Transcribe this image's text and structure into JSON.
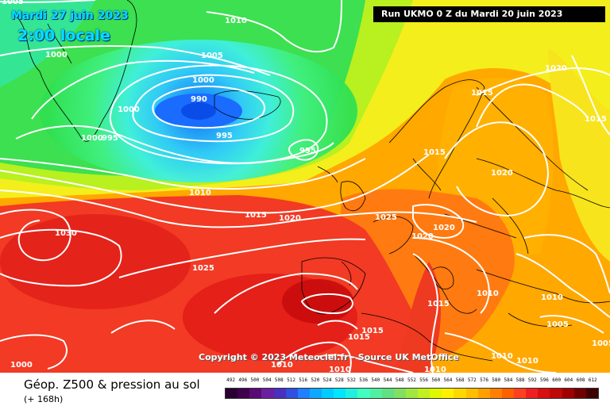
{
  "header": {
    "date_text": "Mardi 27 juin 2023",
    "time_text": "2:00 locale",
    "run_text": "Run UKMO 0 Z du Mardi 20 juin 2023"
  },
  "copyright": "Copyright © 2023 Meteociel.fr - Source UK MetOffice",
  "footer": {
    "title": "Géop. Z500 & pression au sol",
    "subtitle": "(+ 168h)"
  },
  "isobar_labels": [
    "1005",
    "1010",
    "1000",
    "1005",
    "1000",
    "990",
    "1000",
    "995",
    "995",
    "1000",
    "995",
    "1010",
    "1015",
    "1020",
    "1025",
    "1020",
    "1020",
    "1015",
    "1020",
    "1015",
    "1030",
    "1025",
    "1015",
    "1015",
    "1010",
    "1010",
    "1010",
    "1010",
    "1005",
    "1005",
    "1020",
    "1010",
    "1010",
    "1010",
    "1015",
    "1015",
    "1000",
    "1000"
  ],
  "low_center_label": "990",
  "scale": {
    "labels": [
      "492",
      "496",
      "500",
      "504",
      "508",
      "512",
      "516",
      "520",
      "524",
      "528",
      "532",
      "536",
      "540",
      "544",
      "548",
      "552",
      "556",
      "560",
      "564",
      "568",
      "572",
      "576",
      "580",
      "584",
      "588",
      "592",
      "596",
      "600",
      "604",
      "608",
      "612"
    ],
    "colors": [
      "#2a0033",
      "#40004d",
      "#5a0a72",
      "#6a1fa0",
      "#4a2fc0",
      "#3050e0",
      "#2080ff",
      "#10a8ff",
      "#00ccff",
      "#00e6ff",
      "#20f0e0",
      "#40ffc0",
      "#50f0a0",
      "#60e080",
      "#80e060",
      "#a0e840",
      "#c0f020",
      "#e0f800",
      "#fff000",
      "#ffd800",
      "#ffbf00",
      "#ffa000",
      "#ff8000",
      "#ff6000",
      "#ff4020",
      "#f02020",
      "#d81010",
      "#c00808",
      "#a00000",
      "#700000",
      "#400000"
    ]
  },
  "colors": {
    "cyan_text": "#00e0ff",
    "green_zone": "#2ee060",
    "yellow_zone": "#f8f020",
    "orange_zone": "#ffb000",
    "red_zone": "#f03020"
  }
}
